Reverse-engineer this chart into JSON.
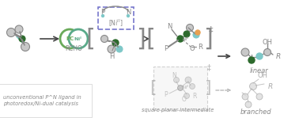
{
  "bg_color": "#ffffff",
  "fig_width": 3.78,
  "fig_height": 1.49,
  "dpi": 100,
  "text_italic_label1": "unconventional P^N ligand in\nphotoredox/Ni-dual catalysis",
  "text_italic_label2": "square planar intermediate",
  "text_linear": "linear",
  "text_branched": "branched",
  "text_RCHO": "RCHO",
  "green_circle_color": "#6aaa5a",
  "teal_circle_color": "#5aaa8a",
  "dark_green": "#2d6a2d",
  "gray_circle": "#c8c8c8",
  "teal_bond": "#7ec8c8",
  "dark_gray": "#888888",
  "dashed_box_color": "#7777cc",
  "orange_color": "#e8a050",
  "arrow_color": "#444444"
}
